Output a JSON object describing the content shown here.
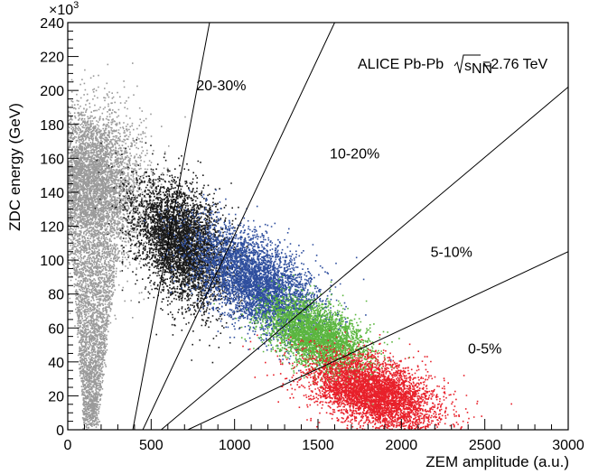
{
  "chart_data": {
    "type": "scatter",
    "title": "ALICE Pb-Pb",
    "energy_label": {
      "sqrt": "s",
      "sub": "NN",
      "value": "=2.76 TeV"
    },
    "xlabel": "ZEM amplitude (a.u.)",
    "ylabel": "ZDC energy (GeV)",
    "y_multiplier": "×10",
    "y_multiplier_exp": "3",
    "xlim": [
      0,
      3000
    ],
    "ylim": [
      0,
      240000
    ],
    "x_ticks": [
      {
        "value": 0,
        "label": "0"
      },
      {
        "value": 500,
        "label": "500"
      },
      {
        "value": 1000,
        "label": "1000"
      },
      {
        "value": 1500,
        "label": "1500"
      },
      {
        "value": 2000,
        "label": "2000"
      },
      {
        "value": 2500,
        "label": "2500"
      },
      {
        "value": 3000,
        "label": "3000"
      }
    ],
    "y_ticks": [
      {
        "value": 0,
        "label": "0"
      },
      {
        "value": 20000,
        "label": "20"
      },
      {
        "value": 40000,
        "label": "40"
      },
      {
        "value": 60000,
        "label": "60"
      },
      {
        "value": 80000,
        "label": "80"
      },
      {
        "value": 100000,
        "label": "100"
      },
      {
        "value": 120000,
        "label": "120"
      },
      {
        "value": 140000,
        "label": "140"
      },
      {
        "value": 160000,
        "label": "160"
      },
      {
        "value": 180000,
        "label": "180"
      },
      {
        "value": 200000,
        "label": "200"
      },
      {
        "value": 220000,
        "label": "220"
      },
      {
        "value": 240000,
        "label": "240"
      }
    ],
    "centrality_lines": [
      {
        "x": [
          390,
          850
        ],
        "y": [
          0,
          240000
        ]
      },
      {
        "x": [
          450,
          1600
        ],
        "y": [
          0,
          240000
        ]
      },
      {
        "x": [
          560,
          3000
        ],
        "y": [
          0,
          202000
        ]
      },
      {
        "x": [
          720,
          3000
        ],
        "y": [
          0,
          105000
        ]
      }
    ],
    "region_labels": [
      {
        "text": "20-30%",
        "x": 920,
        "y": 200000
      },
      {
        "text": "10-20%",
        "x": 1720,
        "y": 160000
      },
      {
        "text": "5-10%",
        "x": 2300,
        "y": 102000
      },
      {
        "text": "0-5%",
        "x": 2500,
        "y": 45000
      }
    ],
    "series": [
      {
        "color": "#9a9a9a",
        "cx": 120,
        "cy": 145000,
        "sx": 160,
        "sy": 22000,
        "rho": -0.1,
        "n": 6000,
        "tail": {
          "x0": 130,
          "y0": 5000,
          "x1": 160,
          "y1": 110000,
          "width": 200,
          "n": 2500
        }
      },
      {
        "color": "#1a1a1a",
        "cx": 680,
        "cy": 110000,
        "sx": 140,
        "sy": 18000,
        "rho": -0.4,
        "n": 4500
      },
      {
        "color": "#2f4f9e",
        "cx": 1130,
        "cy": 87000,
        "sx": 190,
        "sy": 16000,
        "rho": -0.55,
        "n": 4500
      },
      {
        "color": "#5bb63f",
        "cx": 1490,
        "cy": 55000,
        "sx": 150,
        "sy": 11000,
        "rho": -0.5,
        "n": 3500
      },
      {
        "color": "#e8202a",
        "cx": 1830,
        "cy": 22000,
        "sx": 190,
        "sy": 11000,
        "rho": -0.45,
        "n": 4500
      }
    ]
  }
}
